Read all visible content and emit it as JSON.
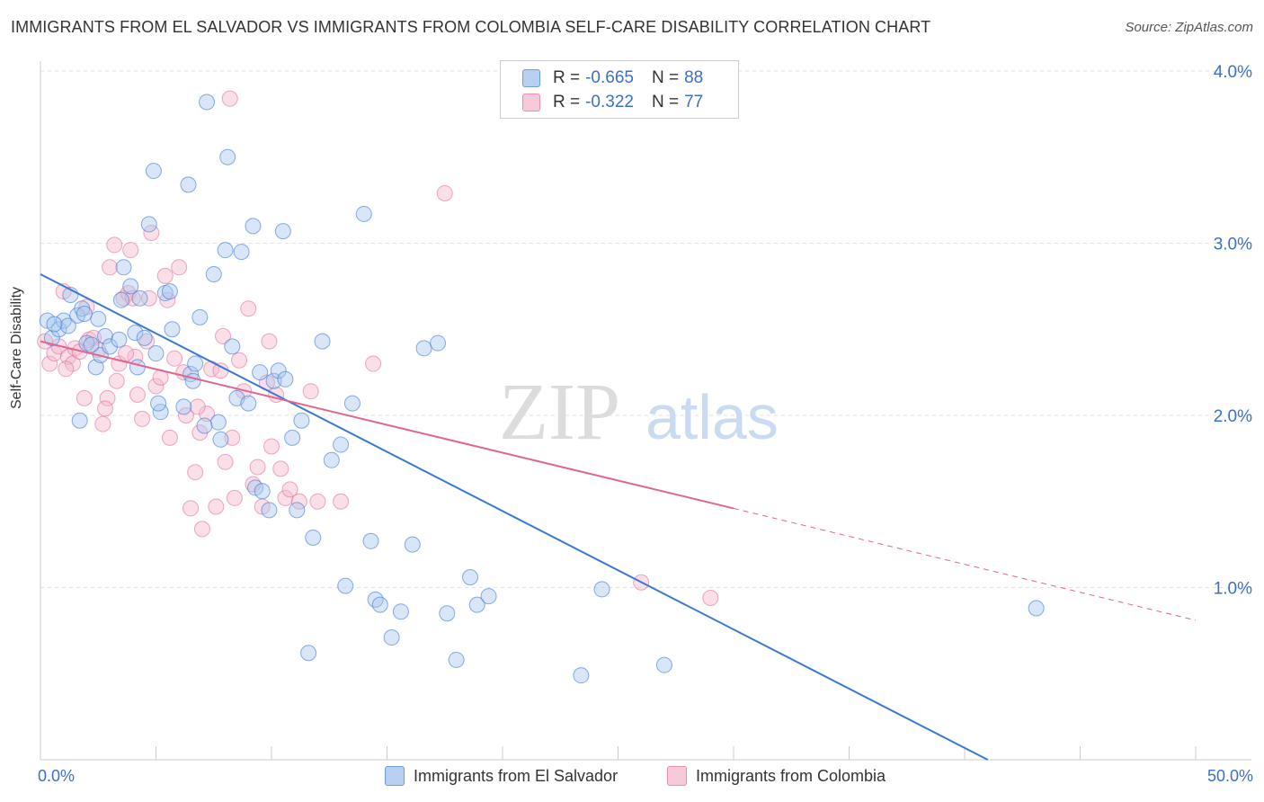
{
  "title": "IMMIGRANTS FROM EL SALVADOR VS IMMIGRANTS FROM COLOMBIA SELF-CARE DISABILITY CORRELATION CHART",
  "source": "Source: ZipAtlas.com",
  "watermark": {
    "zip": "ZIP",
    "atlas": "atlas"
  },
  "colors": {
    "blue": "#3a78d6",
    "blue_fill": "#a9c7ef",
    "pink": "#e0658f",
    "pink_fill": "#f5b8cc",
    "axis_text": "#3a70c8"
  },
  "legend_top": {
    "series": [
      {
        "r_label": "R =",
        "r_value": "-0.665",
        "n_label": "N =",
        "n_value": "88"
      },
      {
        "r_label": "R =",
        "r_value": "-0.322",
        "n_label": "N =",
        "n_value": "77"
      }
    ]
  },
  "chart_data": {
    "type": "scatter",
    "title": "IMMIGRANTS FROM EL SALVADOR VS IMMIGRANTS FROM COLOMBIA SELF-CARE DISABILITY CORRELATION CHART",
    "xlabel": "",
    "ylabel": "Self-Care Disability",
    "xlim": [
      0,
      50
    ],
    "ylim": [
      0,
      4.2
    ],
    "x_tick_labels": [
      "0.0%",
      "50.0%"
    ],
    "y_ticks": [
      1.0,
      2.0,
      3.0,
      4.0
    ],
    "y_tick_labels": [
      "1.0%",
      "2.0%",
      "3.0%",
      "4.0%"
    ],
    "grid": "horizontal dashed",
    "legend_position": "bottom",
    "series": [
      {
        "name": "Immigrants from El Salvador",
        "color": "#3a78d6",
        "trend": {
          "x": [
            0,
            41
          ],
          "y": [
            2.82,
            0.0
          ]
        },
        "points": [
          [
            0.3,
            2.55
          ],
          [
            0.5,
            2.45
          ],
          [
            0.8,
            2.5
          ],
          [
            1.0,
            2.55
          ],
          [
            1.2,
            2.52
          ],
          [
            1.3,
            2.7
          ],
          [
            1.6,
            2.58
          ],
          [
            1.8,
            2.62
          ],
          [
            2.0,
            2.42
          ],
          [
            2.4,
            2.28
          ],
          [
            2.5,
            2.56
          ],
          [
            2.6,
            2.35
          ],
          [
            2.8,
            2.46
          ],
          [
            3.0,
            2.4
          ],
          [
            3.4,
            2.44
          ],
          [
            3.5,
            2.67
          ],
          [
            3.6,
            2.86
          ],
          [
            3.9,
            2.75
          ],
          [
            4.1,
            2.48
          ],
          [
            4.2,
            2.28
          ],
          [
            4.3,
            2.68
          ],
          [
            4.5,
            2.45
          ],
          [
            4.7,
            3.11
          ],
          [
            4.9,
            3.42
          ],
          [
            5.0,
            2.36
          ],
          [
            5.2,
            2.02
          ],
          [
            5.4,
            2.71
          ],
          [
            5.6,
            2.72
          ],
          [
            5.7,
            2.5
          ],
          [
            6.2,
            2.05
          ],
          [
            6.4,
            3.34
          ],
          [
            6.5,
            2.24
          ],
          [
            6.6,
            2.2
          ],
          [
            6.7,
            2.3
          ],
          [
            6.9,
            2.57
          ],
          [
            7.2,
            3.82
          ],
          [
            7.5,
            2.82
          ],
          [
            7.7,
            1.96
          ],
          [
            7.8,
            1.86
          ],
          [
            8.0,
            2.96
          ],
          [
            8.3,
            2.4
          ],
          [
            8.5,
            2.1
          ],
          [
            8.7,
            2.95
          ],
          [
            9.0,
            2.07
          ],
          [
            9.3,
            1.58
          ],
          [
            9.5,
            2.25
          ],
          [
            9.6,
            1.56
          ],
          [
            9.9,
            1.45
          ],
          [
            10.1,
            2.2
          ],
          [
            10.3,
            2.26
          ],
          [
            10.6,
            2.21
          ],
          [
            10.9,
            1.87
          ],
          [
            11.1,
            1.45
          ],
          [
            11.3,
            1.97
          ],
          [
            11.6,
            0.62
          ],
          [
            11.8,
            1.29
          ],
          [
            12.2,
            2.43
          ],
          [
            12.6,
            1.74
          ],
          [
            13.0,
            1.83
          ],
          [
            13.2,
            1.01
          ],
          [
            13.5,
            2.07
          ],
          [
            14.0,
            3.17
          ],
          [
            14.3,
            1.27
          ],
          [
            14.5,
            0.93
          ],
          [
            14.7,
            0.9
          ],
          [
            15.2,
            0.71
          ],
          [
            15.6,
            0.86
          ],
          [
            16.1,
            1.25
          ],
          [
            16.6,
            2.39
          ],
          [
            17.2,
            2.42
          ],
          [
            17.6,
            0.85
          ],
          [
            18.0,
            0.58
          ],
          [
            18.6,
            1.06
          ],
          [
            18.9,
            0.9
          ],
          [
            19.4,
            0.95
          ],
          [
            23.4,
            0.49
          ],
          [
            24.3,
            0.99
          ],
          [
            27.0,
            0.55
          ],
          [
            43.1,
            0.88
          ],
          [
            7.1,
            1.94
          ],
          [
            8.1,
            3.5
          ],
          [
            1.9,
            2.59
          ],
          [
            0.6,
            2.53
          ],
          [
            2.2,
            2.41
          ],
          [
            5.1,
            2.07
          ],
          [
            9.2,
            3.1
          ],
          [
            10.5,
            3.07
          ],
          [
            1.7,
            1.97
          ]
        ]
      },
      {
        "name": "Immigrants from Colombia",
        "color": "#e0658f",
        "trend": {
          "x": [
            0,
            30
          ],
          "y": [
            2.43,
            1.46
          ]
        },
        "trend_dashed": {
          "x": [
            30,
            50
          ],
          "y": [
            1.46,
            0.81
          ]
        },
        "points": [
          [
            0.2,
            2.43
          ],
          [
            0.4,
            2.3
          ],
          [
            0.6,
            2.36
          ],
          [
            0.8,
            2.4
          ],
          [
            1.0,
            2.72
          ],
          [
            1.2,
            2.34
          ],
          [
            1.4,
            2.3
          ],
          [
            1.5,
            2.39
          ],
          [
            1.7,
            2.37
          ],
          [
            1.9,
            2.1
          ],
          [
            2.1,
            2.44
          ],
          [
            2.3,
            2.45
          ],
          [
            2.5,
            2.38
          ],
          [
            2.7,
            1.95
          ],
          [
            2.9,
            2.1
          ],
          [
            3.0,
            2.86
          ],
          [
            3.2,
            2.99
          ],
          [
            3.4,
            2.3
          ],
          [
            3.6,
            2.68
          ],
          [
            3.8,
            2.71
          ],
          [
            3.9,
            2.96
          ],
          [
            4.0,
            2.68
          ],
          [
            4.2,
            2.12
          ],
          [
            4.4,
            1.98
          ],
          [
            4.6,
            2.43
          ],
          [
            4.8,
            3.06
          ],
          [
            5.0,
            2.17
          ],
          [
            5.2,
            2.22
          ],
          [
            5.4,
            2.81
          ],
          [
            5.6,
            1.87
          ],
          [
            5.8,
            2.33
          ],
          [
            6.0,
            2.86
          ],
          [
            6.2,
            2.25
          ],
          [
            6.3,
            2.0
          ],
          [
            6.5,
            1.46
          ],
          [
            6.7,
            1.67
          ],
          [
            6.9,
            1.9
          ],
          [
            7.0,
            1.34
          ],
          [
            7.2,
            2.01
          ],
          [
            7.4,
            2.27
          ],
          [
            7.6,
            1.47
          ],
          [
            7.8,
            2.26
          ],
          [
            8.0,
            1.73
          ],
          [
            8.2,
            3.84
          ],
          [
            8.4,
            1.52
          ],
          [
            8.6,
            2.32
          ],
          [
            8.8,
            2.14
          ],
          [
            9.0,
            2.62
          ],
          [
            9.2,
            1.6
          ],
          [
            9.4,
            1.7
          ],
          [
            9.6,
            1.47
          ],
          [
            9.8,
            2.19
          ],
          [
            10.0,
            1.82
          ],
          [
            10.2,
            2.12
          ],
          [
            10.4,
            1.69
          ],
          [
            10.6,
            1.52
          ],
          [
            10.8,
            1.57
          ],
          [
            11.2,
            1.5
          ],
          [
            11.7,
            2.14
          ],
          [
            12.0,
            1.5
          ],
          [
            13.0,
            1.5
          ],
          [
            14.4,
            2.3
          ],
          [
            17.5,
            3.29
          ],
          [
            26.0,
            1.03
          ],
          [
            29.0,
            0.94
          ],
          [
            4.1,
            2.34
          ],
          [
            2.0,
            2.63
          ],
          [
            3.7,
            2.36
          ],
          [
            5.5,
            2.67
          ],
          [
            8.3,
            1.87
          ],
          [
            6.8,
            2.05
          ],
          [
            1.1,
            2.27
          ],
          [
            3.3,
            2.2
          ],
          [
            7.9,
            2.46
          ],
          [
            4.7,
            2.68
          ],
          [
            2.8,
            2.04
          ],
          [
            9.9,
            2.43
          ]
        ]
      }
    ]
  },
  "bottom_legend": [
    {
      "label": "Immigrants from El Salvador"
    },
    {
      "label": "Immigrants from Colombia"
    }
  ],
  "axis": {
    "x_min_label": "0.0%",
    "x_max_label": "50.0%"
  }
}
